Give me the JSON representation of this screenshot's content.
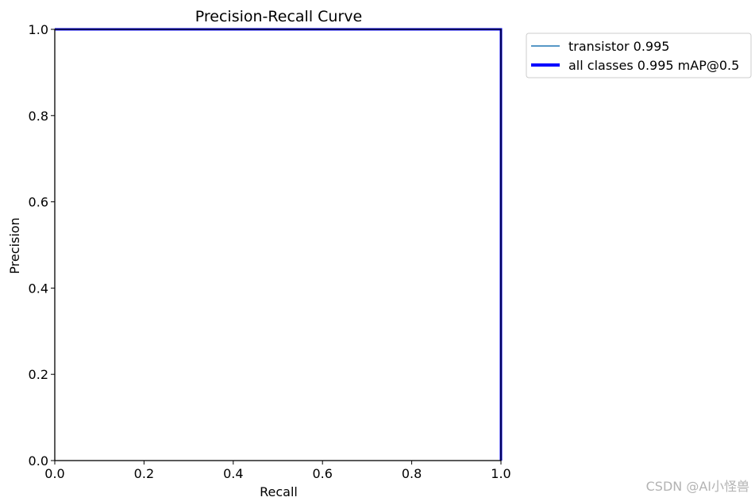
{
  "chart_data": {
    "type": "line",
    "title": "Precision-Recall Curve",
    "xlabel": "Recall",
    "ylabel": "Precision",
    "xlim": [
      0,
      1
    ],
    "ylim": [
      0,
      1
    ],
    "xticks": [
      "0.0",
      "0.2",
      "0.4",
      "0.6",
      "0.8",
      "1.0"
    ],
    "yticks": [
      "0.0",
      "0.2",
      "0.4",
      "0.6",
      "0.8",
      "1.0"
    ],
    "grid": false,
    "legend_position": "outside-top-right",
    "series": [
      {
        "name": "transistor 0.995",
        "color": "#1f77b4",
        "x": [
          0.0,
          1.0,
          1.0
        ],
        "y": [
          1.0,
          1.0,
          0.0
        ]
      },
      {
        "name": "all classes 0.995 mAP@0.5",
        "color": "#0000ff",
        "x": [
          0.0,
          1.0,
          1.0
        ],
        "y": [
          1.0,
          1.0,
          0.0
        ]
      }
    ]
  },
  "watermark": "CSDN @AI小怪兽"
}
